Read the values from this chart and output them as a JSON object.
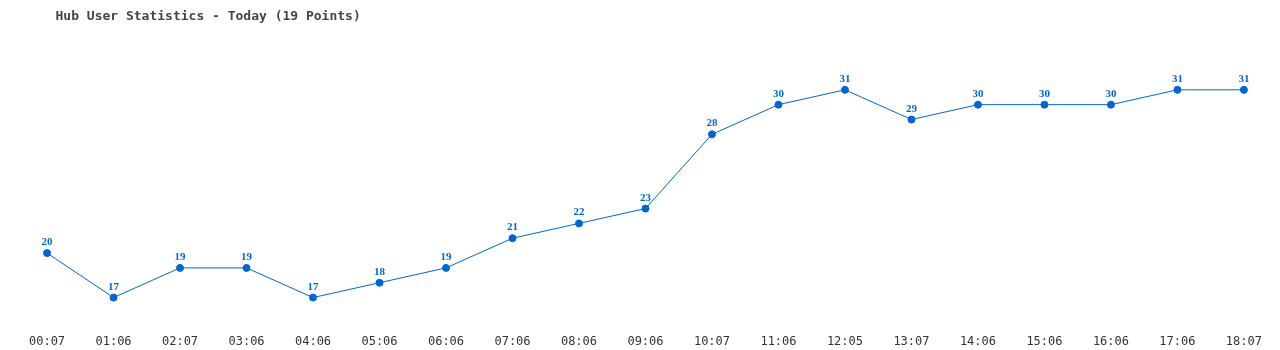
{
  "chart_data": {
    "type": "line",
    "title": "Hub User Statistics - Today (19 Points)",
    "categories": [
      "00:07",
      "01:06",
      "02:07",
      "03:06",
      "04:06",
      "05:06",
      "06:06",
      "07:06",
      "08:06",
      "09:06",
      "10:07",
      "11:06",
      "12:05",
      "13:07",
      "14:06",
      "15:06",
      "16:06",
      "17:06",
      "18:07"
    ],
    "series": [
      {
        "color": "#0066cc",
        "values": [
          20,
          17,
          19,
          19,
          17,
          18,
          19,
          21,
          22,
          23,
          28,
          30,
          31,
          29,
          30,
          30,
          30,
          31,
          31
        ]
      }
    ],
    "data_labels": true,
    "marker": "circle",
    "line_style": "solid"
  }
}
